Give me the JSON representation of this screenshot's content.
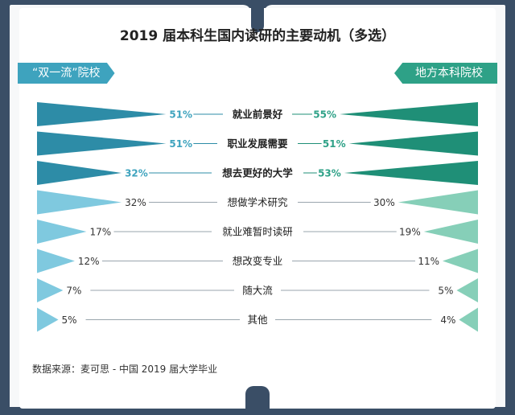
{
  "title": "2019 届本科生国内读研的主要动机（多选）",
  "colors": {
    "left_dark": "#2d8ca7",
    "left_light": "#7fc9df",
    "right_dark": "#1f8f77",
    "right_light": "#86cfb8",
    "highlight_left": "#3ea3be",
    "highlight_right": "#2ea187",
    "text": "#333333"
  },
  "source": "数据来源：麦可思 - 中国 2019 届大学毕业",
  "chart_data": {
    "type": "bar",
    "layout": "butterfly",
    "categories": [
      "就业前景好",
      "职业发展需要",
      "想去更好的大学",
      "想做学术研究",
      "就业难暂时读研",
      "想改变专业",
      "随大流",
      "其他"
    ],
    "series": [
      {
        "name": "“双一流”院校",
        "side": "left",
        "values": [
          51,
          51,
          32,
          32,
          17,
          12,
          7,
          5
        ],
        "labels": [
          "51%",
          "51%",
          "32%",
          "32%",
          "17%",
          "12%",
          "7%",
          "5%"
        ]
      },
      {
        "name": "地方本科院校",
        "side": "right",
        "values": [
          55,
          51,
          53,
          30,
          19,
          11,
          5,
          4
        ],
        "labels": [
          "55%",
          "51%",
          "53%",
          "30%",
          "19%",
          "11%",
          "5%",
          "4%"
        ]
      }
    ],
    "highlight_top_n": 3,
    "unit": "%"
  }
}
